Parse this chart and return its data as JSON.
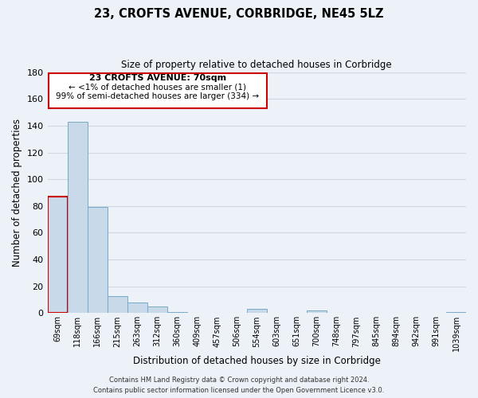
{
  "title": "23, CROFTS AVENUE, CORBRIDGE, NE45 5LZ",
  "subtitle": "Size of property relative to detached houses in Corbridge",
  "xlabel": "Distribution of detached houses by size in Corbridge",
  "ylabel": "Number of detached properties",
  "bar_color": "#c8daea",
  "bar_edge_color": "#7aaac8",
  "background_color": "#edf2f8",
  "grid_color": "#d0d8e4",
  "annotation_box_color": "#ffffff",
  "annotation_box_edge_color": "#cc0000",
  "annotation_line1": "23 CROFTS AVENUE: 70sqm",
  "annotation_line2": "← <1% of detached houses are smaller (1)",
  "annotation_line3": "99% of semi-detached houses are larger (334) →",
  "footer1": "Contains HM Land Registry data © Crown copyright and database right 2024.",
  "footer2": "Contains public sector information licensed under the Open Government Licence v3.0.",
  "bins": [
    "69sqm",
    "118sqm",
    "166sqm",
    "215sqm",
    "263sqm",
    "312sqm",
    "360sqm",
    "409sqm",
    "457sqm",
    "506sqm",
    "554sqm",
    "603sqm",
    "651sqm",
    "700sqm",
    "748sqm",
    "797sqm",
    "845sqm",
    "894sqm",
    "942sqm",
    "991sqm",
    "1039sqm"
  ],
  "values": [
    87,
    143,
    79,
    13,
    8,
    5,
    1,
    0,
    0,
    0,
    3,
    0,
    0,
    2,
    0,
    0,
    0,
    0,
    0,
    0,
    1
  ],
  "ylim": [
    0,
    180
  ],
  "yticks": [
    0,
    20,
    40,
    60,
    80,
    100,
    120,
    140,
    160,
    180
  ],
  "highlight_bar_index": 0,
  "highlight_bar_edge_color": "#cc0000"
}
